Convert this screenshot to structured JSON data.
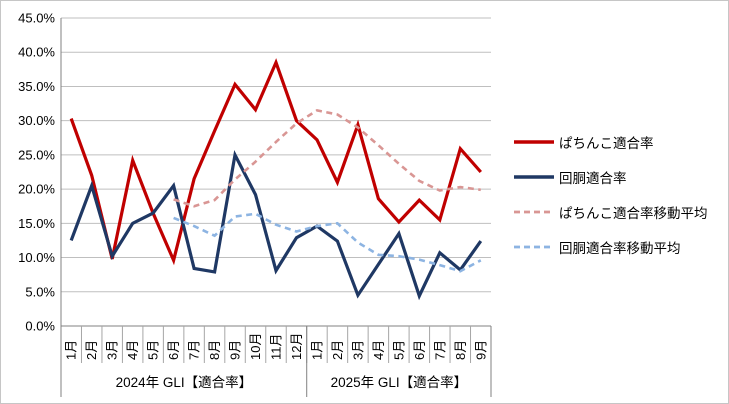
{
  "chart_data": {
    "type": "line",
    "grid": true,
    "legend_position": "right",
    "y_axis": {
      "min": 0,
      "max": 45,
      "step": 5,
      "tick_labels": [
        "0.0%",
        "5.0%",
        "10.0%",
        "15.0%",
        "20.0%",
        "25.0%",
        "30.0%",
        "35.0%",
        "40.0%",
        "45.0%"
      ]
    },
    "categories": [
      "1月",
      "2月",
      "3月",
      "4月",
      "5月",
      "6月",
      "7月",
      "8月",
      "9月",
      "10月",
      "11月",
      "12月",
      "1月",
      "2月",
      "3月",
      "4月",
      "5月",
      "6月",
      "7月",
      "8月",
      "9月"
    ],
    "groups": [
      {
        "label": "2024年 GLI【適合率】",
        "count": 12
      },
      {
        "label": "2025年 GLI【適合率】",
        "count": 9
      }
    ],
    "series": [
      {
        "name": "ぱちんこ適合率",
        "color": "#C00000",
        "style": "solid",
        "values": [
          30.3,
          22.0,
          9.8,
          24.2,
          16.5,
          9.6,
          21.5,
          28.5,
          35.3,
          31.6,
          38.5,
          30.0,
          27.2,
          21.0,
          29.4,
          18.6,
          15.2,
          18.4,
          15.5,
          25.9,
          22.5
        ]
      },
      {
        "name": "回胴適合率",
        "color": "#1F3864",
        "style": "solid",
        "values": [
          12.5,
          20.5,
          10.2,
          15.0,
          16.5,
          20.5,
          8.4,
          7.9,
          25.0,
          19.2,
          8.1,
          12.9,
          14.6,
          12.4,
          4.5,
          9.0,
          13.5,
          4.4,
          10.7,
          8.2,
          12.4
        ]
      },
      {
        "name": "ぱちんこ適合率移動平均",
        "color": "#D99694",
        "style": "dashed",
        "values": [
          null,
          null,
          null,
          null,
          null,
          18.5,
          17.5,
          18.4,
          21.4,
          24.0,
          26.9,
          29.6,
          31.5,
          30.9,
          29.0,
          26.4,
          23.7,
          21.2,
          19.8,
          20.3,
          19.9
        ]
      },
      {
        "name": "回胴適合率移動平均",
        "color": "#8DB4E2",
        "style": "dashed",
        "values": [
          null,
          null,
          null,
          null,
          null,
          15.8,
          14.6,
          13.2,
          16.0,
          16.4,
          14.8,
          13.8,
          14.6,
          15.0,
          12.2,
          10.4,
          10.2,
          9.7,
          8.9,
          8.0,
          9.6
        ]
      }
    ],
    "colors": {
      "gridline": "#BFBFBF",
      "axis_line": "#808080",
      "separator": "#A6A6A6"
    }
  }
}
